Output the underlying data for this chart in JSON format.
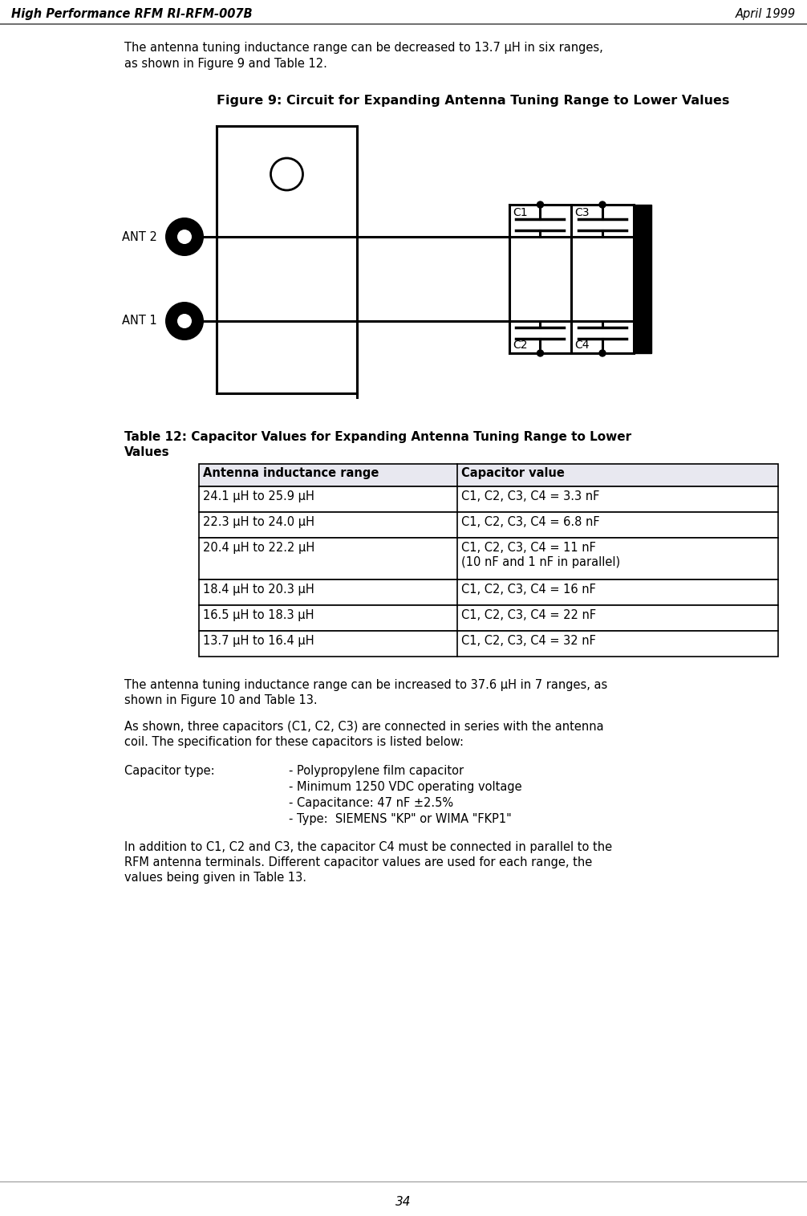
{
  "bg_color": "#ffffff",
  "header_left": "High Performance RFM RI-RFM-007B",
  "header_right": "April 1999",
  "page_number": "34",
  "intro_line1": "The antenna tuning inductance range can be decreased to 13.7 μH in six ranges,",
  "intro_line2": "as shown in Figure 9 and Table 12.",
  "figure_title": "Figure 9: Circuit for Expanding Antenna Tuning Range to Lower Values",
  "table_title_line1": "Table 12: Capacitor Values for Expanding Antenna Tuning Range to Lower",
  "table_title_line2": "Values",
  "table_headers": [
    "Antenna inductance range",
    "Capacitor value"
  ],
  "table_rows": [
    [
      "24.1 μH to 25.9 μH",
      "C1, C2, C3, C4 = 3.3 nF",
      false
    ],
    [
      "22.3 μH to 24.0 μH",
      "C1, C2, C3, C4 = 6.8 nF",
      false
    ],
    [
      "20.4 μH to 22.2 μH",
      "C1, C2, C3, C4 = 11 nF",
      true
    ],
    [
      "18.4 μH to 20.3 μH",
      "C1, C2, C3, C4 = 16 nF",
      false
    ],
    [
      "16.5 μH to 18.3 μH",
      "C1, C2, C3, C4 = 22 nF",
      false
    ],
    [
      "13.7 μH to 16.4 μH",
      "C1, C2, C3, C4 = 32 nF",
      false
    ]
  ],
  "table_row3_extra": "(10 nF and 1 nF in parallel)",
  "para1_line1": "The antenna tuning inductance range can be increased to 37.6 μH in 7 ranges, as",
  "para1_line2": "shown in Figure 10 and Table 13.",
  "para2_line1": "As shown, three capacitors (C1, C2, C3) are connected in series with the antenna",
  "para2_line2": "coil. The specification for these capacitors is listed below:",
  "cap_label": "Capacitor type:",
  "cap_specs": [
    "- Polypropylene film capacitor",
    "- Minimum 1250 VDC operating voltage",
    "- Capacitance: 47 nF ±2.5%",
    "- Type:  SIEMENS \"KP\" or WIMA \"FKP1\""
  ],
  "para3_line1": "In addition to C1, C2 and C3, the capacitor C4 must be connected in parallel to the",
  "para3_line2": "RFM antenna terminals. Different capacitor values are used for each range, the",
  "para3_line3": "values being given in Table 13.",
  "header_color": "#e8e8f0",
  "table_border_color": "#000000",
  "lw_circuit": 2.2,
  "lw_table": 1.2
}
